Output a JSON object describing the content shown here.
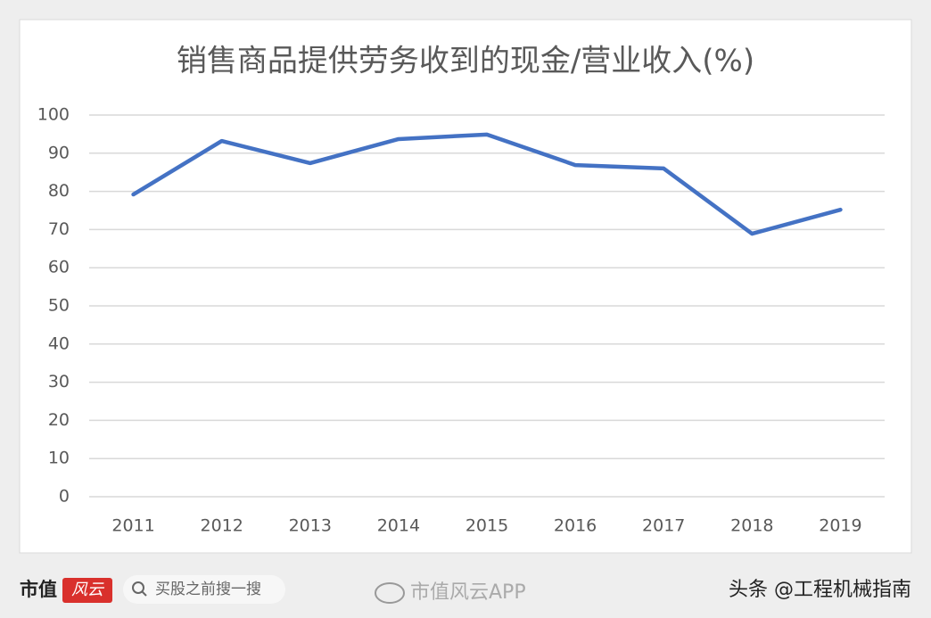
{
  "chart_data": {
    "type": "line",
    "title": "销售商品提供劳务收到的现金/营业收入(%)",
    "categories": [
      "2011",
      "2012",
      "2013",
      "2014",
      "2015",
      "2016",
      "2017",
      "2018",
      "2019"
    ],
    "series": [
      {
        "name": "销售商品提供劳务收到的现金/营业收入",
        "color": "#4472c4",
        "values": [
          79.2,
          93.2,
          87.4,
          93.7,
          94.9,
          86.9,
          86.0,
          68.9,
          75.2
        ]
      }
    ],
    "ylim": [
      0,
      100
    ],
    "yticks": [
      0,
      10,
      20,
      30,
      40,
      50,
      60,
      70,
      80,
      90,
      100
    ],
    "grid": true,
    "legend": false
  },
  "footer": {
    "brand": "市值",
    "logo": "风云",
    "search": "买股之前搜一搜",
    "weibo": "市值风云APP",
    "source": "头条 @工程机械指南"
  }
}
